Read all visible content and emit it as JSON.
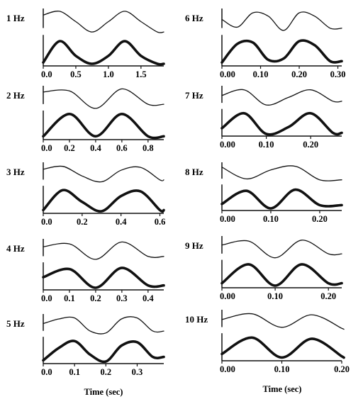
{
  "chart_data": [
    {
      "type": "line",
      "title": "1 Hz",
      "frequency_hz": 1,
      "xlim": [
        0,
        1.85
      ],
      "xticks": [
        0,
        0.5,
        1.0,
        1.5
      ],
      "xtick_labels": [
        "0.0",
        "0.5",
        "1.0",
        "1.5"
      ],
      "series": [
        {
          "style": "thin",
          "x": [
            0,
            0.25,
            0.5,
            0.75,
            1.0,
            1.25,
            1.5,
            1.75
          ],
          "y": [
            0.8,
            0.97,
            0.5,
            0.03,
            0.5,
            0.97,
            0.5,
            0.03
          ]
        },
        {
          "style": "thick",
          "x": [
            0,
            0.25,
            0.5,
            0.75,
            1.0,
            1.25,
            1.5,
            1.75
          ],
          "y": [
            0.05,
            0.85,
            0.3,
            0.0,
            0.3,
            0.85,
            0.3,
            0.0
          ]
        }
      ]
    },
    {
      "type": "line",
      "title": "6 Hz",
      "frequency_hz": 6,
      "xlim": [
        0,
        0.31
      ],
      "xticks": [
        0,
        0.1,
        0.2,
        0.3
      ],
      "xtick_labels": [
        "0.00",
        "0.10",
        "0.20",
        "0.30"
      ],
      "series": [
        {
          "style": "thin",
          "x": [
            0,
            0.04,
            0.08,
            0.12,
            0.16,
            0.2,
            0.24,
            0.28
          ],
          "y": [
            0.6,
            0.25,
            0.9,
            0.75,
            0.1,
            0.9,
            0.75,
            0.2
          ]
        },
        {
          "style": "thick",
          "x": [
            0,
            0.04,
            0.08,
            0.12,
            0.16,
            0.2,
            0.24,
            0.28
          ],
          "y": [
            0.05,
            0.75,
            0.8,
            0.15,
            0.2,
            0.85,
            0.7,
            0.1
          ]
        }
      ]
    },
    {
      "type": "line",
      "title": "2 Hz",
      "frequency_hz": 2,
      "xlim": [
        0,
        0.92
      ],
      "xticks": [
        0,
        0.2,
        0.4,
        0.6,
        0.8
      ],
      "xtick_labels": [
        "0.0",
        "0.2",
        "0.4",
        "0.6",
        "0.8"
      ],
      "series": [
        {
          "style": "thin",
          "x": [
            0,
            0.2,
            0.4,
            0.6,
            0.8
          ],
          "y": [
            0.8,
            0.85,
            0.0,
            0.95,
            0.2
          ]
        },
        {
          "style": "thick",
          "x": [
            0,
            0.2,
            0.4,
            0.6,
            0.8
          ],
          "y": [
            0.05,
            0.95,
            0.05,
            0.95,
            0.05
          ]
        }
      ]
    },
    {
      "type": "line",
      "title": "7 Hz",
      "frequency_hz": 7,
      "xlim": [
        0,
        0.27
      ],
      "xticks": [
        0,
        0.1,
        0.2
      ],
      "xtick_labels": [
        "0.00",
        "0.10",
        "0.20"
      ],
      "series": [
        {
          "style": "thin",
          "x": [
            0,
            0.05,
            0.1,
            0.15,
            0.2,
            0.25
          ],
          "y": [
            0.6,
            0.9,
            0.1,
            0.5,
            0.9,
            0.3
          ]
        },
        {
          "style": "thick",
          "x": [
            0,
            0.05,
            0.1,
            0.15,
            0.2,
            0.25
          ],
          "y": [
            0.25,
            0.9,
            0.0,
            0.3,
            0.9,
            0.05
          ]
        }
      ]
    },
    {
      "type": "line",
      "title": "3 Hz",
      "frequency_hz": 3,
      "xlim": [
        0,
        0.62
      ],
      "xticks": [
        0,
        0.2,
        0.4,
        0.6
      ],
      "xtick_labels": [
        "0.0",
        "0.2",
        "0.4",
        "0.6"
      ],
      "series": [
        {
          "style": "thin",
          "x": [
            0,
            0.1,
            0.2,
            0.3,
            0.4,
            0.5,
            0.6
          ],
          "y": [
            0.75,
            0.9,
            0.4,
            0.1,
            0.7,
            0.85,
            0.2
          ]
        },
        {
          "style": "thick",
          "x": [
            0,
            0.1,
            0.2,
            0.3,
            0.4,
            0.5,
            0.6
          ],
          "y": [
            0.05,
            0.9,
            0.4,
            0.0,
            0.65,
            0.85,
            0.05
          ]
        }
      ]
    },
    {
      "type": "line",
      "title": "8 Hz",
      "frequency_hz": 8,
      "xlim": [
        0,
        0.245
      ],
      "xticks": [
        0,
        0.1,
        0.2
      ],
      "xtick_labels": [
        "0.00",
        "0.10",
        "0.20"
      ],
      "series": [
        {
          "style": "thin",
          "x": [
            0,
            0.05,
            0.1,
            0.15,
            0.2
          ],
          "y": [
            0.85,
            0.2,
            0.7,
            0.9,
            0.15
          ]
        },
        {
          "style": "thick",
          "x": [
            0,
            0.05,
            0.1,
            0.15,
            0.2
          ],
          "y": [
            0.2,
            0.8,
            0.0,
            0.85,
            0.15
          ]
        }
      ]
    },
    {
      "type": "line",
      "title": "4 Hz",
      "frequency_hz": 4,
      "xlim": [
        0,
        0.46
      ],
      "xticks": [
        0,
        0.1,
        0.2,
        0.3,
        0.4
      ],
      "xtick_labels": [
        "0.0",
        "0.1",
        "0.2",
        "0.3",
        "0.4"
      ],
      "series": [
        {
          "style": "thin",
          "x": [
            0,
            0.1,
            0.2,
            0.3,
            0.4
          ],
          "y": [
            0.7,
            0.85,
            0.05,
            0.95,
            0.2
          ]
        },
        {
          "style": "thick",
          "x": [
            0,
            0.1,
            0.2,
            0.3,
            0.4
          ],
          "y": [
            0.45,
            0.8,
            0.0,
            0.85,
            0.1
          ]
        }
      ]
    },
    {
      "type": "line",
      "title": "9 Hz",
      "frequency_hz": 9,
      "xlim": [
        0,
        0.225
      ],
      "xticks": [
        0,
        0.1,
        0.2
      ],
      "xtick_labels": [
        "0.00",
        "0.10",
        "0.20"
      ],
      "series": [
        {
          "style": "thin",
          "x": [
            0,
            0.05,
            0.1,
            0.15,
            0.2
          ],
          "y": [
            0.65,
            0.85,
            0.0,
            0.9,
            0.2
          ]
        },
        {
          "style": "thick",
          "x": [
            0,
            0.05,
            0.1,
            0.15,
            0.2
          ],
          "y": [
            0.1,
            0.9,
            0.0,
            0.9,
            0.1
          ]
        }
      ]
    },
    {
      "type": "line",
      "title": "5 Hz",
      "frequency_hz": 5,
      "xlim": [
        0,
        0.385
      ],
      "xticks": [
        0,
        0.1,
        0.2,
        0.3
      ],
      "xtick_labels": [
        "0.0",
        "0.1",
        "0.2",
        "0.3"
      ],
      "xlabel": "Time (sec)",
      "series": [
        {
          "style": "thin",
          "x": [
            0,
            0.05,
            0.1,
            0.15,
            0.2,
            0.25,
            0.3,
            0.35
          ],
          "y": [
            0.6,
            0.85,
            0.9,
            0.2,
            0.1,
            0.85,
            0.9,
            0.2
          ]
        },
        {
          "style": "thick",
          "x": [
            0,
            0.05,
            0.1,
            0.15,
            0.2,
            0.25,
            0.3,
            0.35
          ],
          "y": [
            0.05,
            0.6,
            0.9,
            0.3,
            0.0,
            0.7,
            0.85,
            0.2
          ]
        }
      ]
    },
    {
      "type": "line",
      "title": "10  Hz",
      "frequency_hz": 10,
      "xlim": [
        0,
        0.2
      ],
      "xticks": [
        0,
        0.1,
        0.2
      ],
      "xtick_labels": [
        "0.00",
        "0.10",
        "0.20"
      ],
      "xlabel": "Time (sec)",
      "series": [
        {
          "style": "thin",
          "x": [
            0,
            0.05,
            0.1,
            0.15,
            0.2
          ],
          "y": [
            0.6,
            0.9,
            0.2,
            0.85,
            0.15
          ]
        },
        {
          "style": "thick",
          "x": [
            0,
            0.05,
            0.1,
            0.15,
            0.2
          ],
          "y": [
            0.2,
            0.9,
            0.05,
            0.85,
            0.1
          ]
        }
      ]
    }
  ]
}
